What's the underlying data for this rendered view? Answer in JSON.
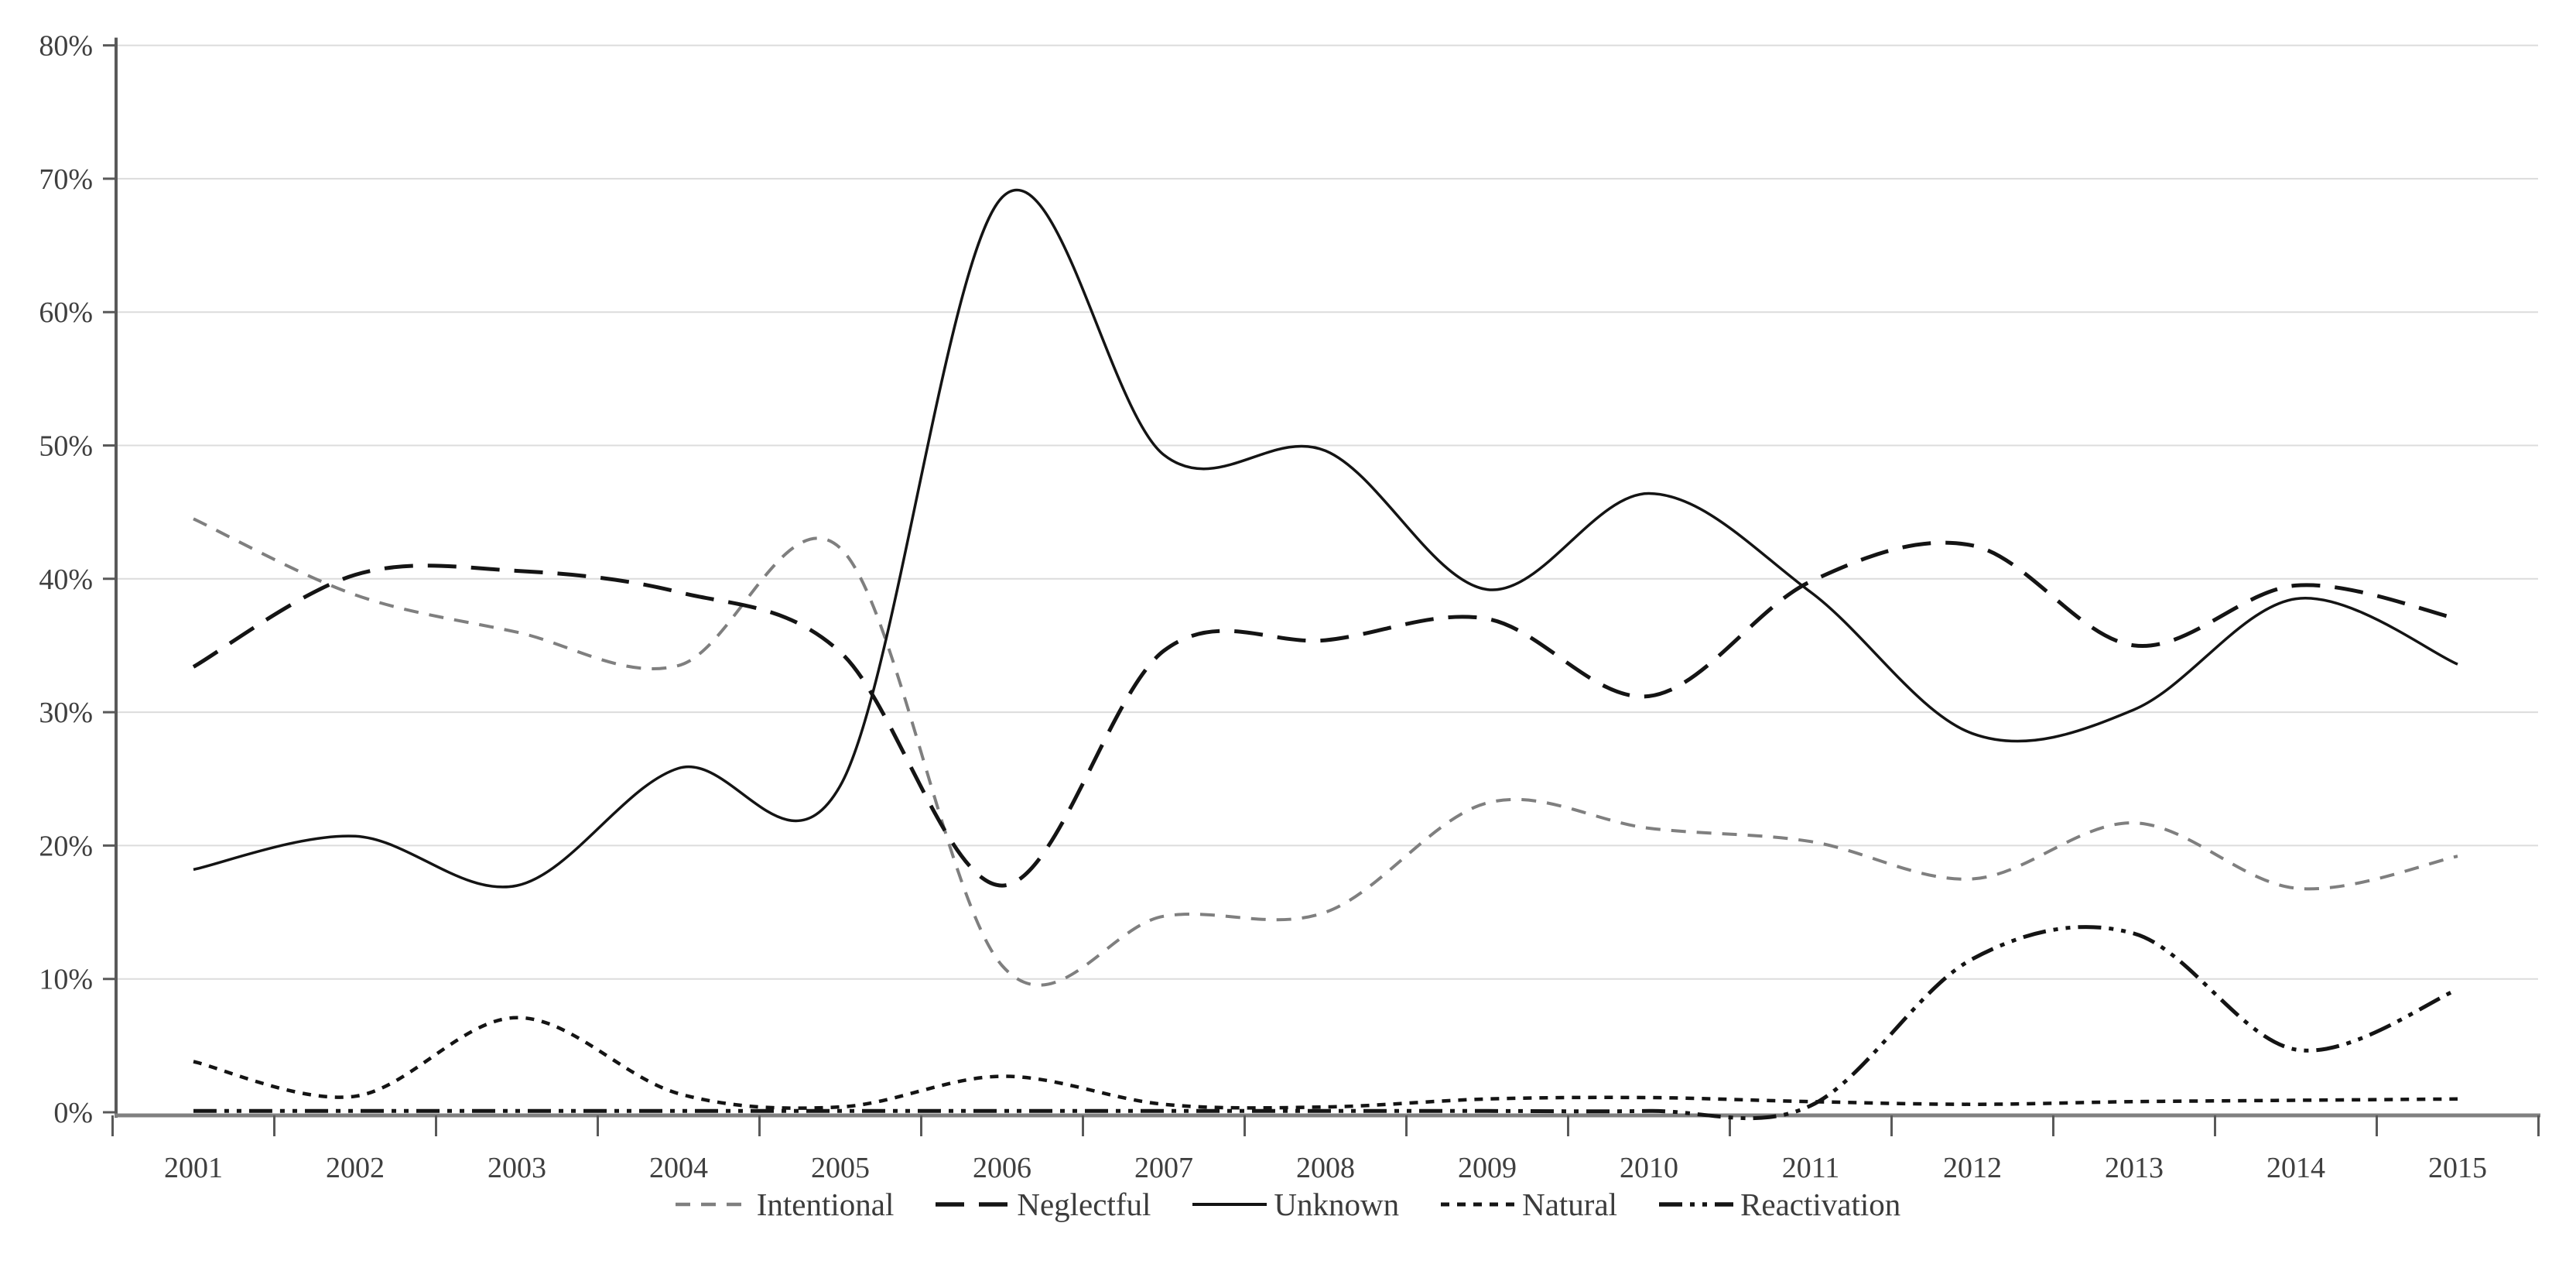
{
  "chart_data": {
    "type": "line",
    "smoothed": true,
    "title": "",
    "xlabel": "",
    "ylabel": "",
    "x_categories": [
      "2001",
      "2002",
      "2003",
      "2004",
      "2005",
      "2006",
      "2007",
      "2008",
      "2009",
      "2010",
      "2011",
      "2012",
      "2013",
      "2014",
      "2015"
    ],
    "y_ticks": [
      "0%",
      "10%",
      "20%",
      "30%",
      "40%",
      "50%",
      "60%",
      "70%",
      "80%"
    ],
    "ylim": [
      0,
      80
    ],
    "y_step": 10,
    "grid": "horizontal",
    "legend_position": "bottom",
    "series": [
      {
        "name": "Intentional",
        "color": "#7f7f7f",
        "line_style": "dashed",
        "values": [
          44.5,
          38.8,
          36.0,
          33.5,
          42.3,
          11.0,
          14.7,
          15.0,
          23.2,
          21.3,
          20.3,
          17.5,
          21.7,
          16.8,
          19.2
        ]
      },
      {
        "name": "Neglectful",
        "color": "#141414",
        "line_style": "long-dash",
        "values": [
          33.4,
          40.3,
          40.6,
          39.0,
          34.5,
          17.0,
          34.6,
          35.4,
          37.0,
          31.2,
          39.8,
          42.5,
          35.0,
          39.5,
          37.0
        ]
      },
      {
        "name": "Unknown",
        "color": "#141414",
        "line_style": "solid",
        "values": [
          18.2,
          20.7,
          17.0,
          25.8,
          24.5,
          68.6,
          49.3,
          49.6,
          39.2,
          46.4,
          39.0,
          28.4,
          30.2,
          38.5,
          33.6
        ]
      },
      {
        "name": "Natural",
        "color": "#141414",
        "line_style": "short-dash",
        "values": [
          3.8,
          1.2,
          7.1,
          1.4,
          0.4,
          2.7,
          0.6,
          0.4,
          1.0,
          1.1,
          0.8,
          0.6,
          0.8,
          0.9,
          1.0
        ]
      },
      {
        "name": "Reactivation",
        "color": "#141414",
        "line_style": "dash-dot-dot",
        "values": [
          0.1,
          0.1,
          0.1,
          0.1,
          0.1,
          0.1,
          0.1,
          0.1,
          0.1,
          0.1,
          0.5,
          11.5,
          13.4,
          4.7,
          9.2
        ]
      }
    ],
    "colors": {
      "grid": "#dcdcdc",
      "axis_line": "#808080",
      "tick": "#595959",
      "label": "#3f3f3f",
      "background": "#ffffff"
    }
  }
}
